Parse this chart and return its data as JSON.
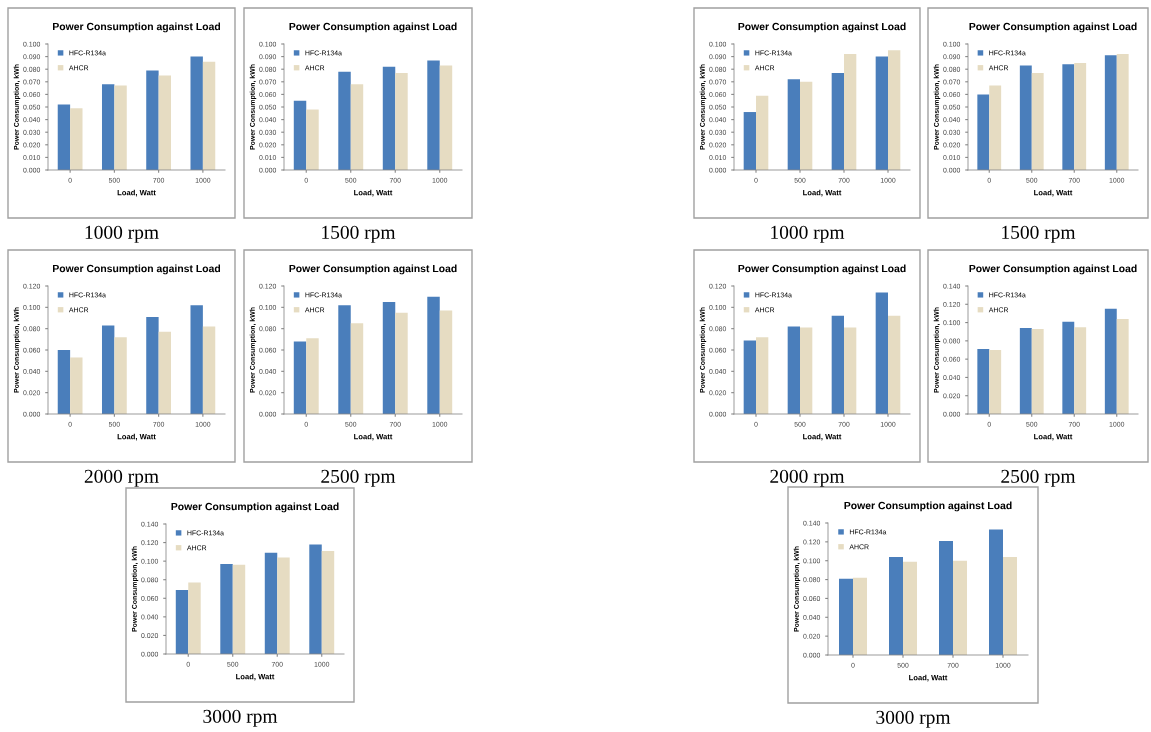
{
  "chart_data": [
    {
      "type": "bar",
      "title": "Power Consumption against Load",
      "xlabel": "Load, Watt",
      "ylabel": "Power Consumption, kWh",
      "categories": [
        "0",
        "500",
        "700",
        "1000"
      ],
      "ylim": [
        0,
        0.1
      ],
      "yticks": [
        {
          "value": 0,
          "label": "0.000"
        },
        {
          "value": 0.01,
          "label": "0.010"
        },
        {
          "value": 0.02,
          "label": "0.020"
        },
        {
          "value": 0.03,
          "label": "0.030"
        },
        {
          "value": 0.04,
          "label": "0.040"
        },
        {
          "value": 0.05,
          "label": "0.050"
        },
        {
          "value": 0.06,
          "label": "0.060"
        },
        {
          "value": 0.07,
          "label": "0.070"
        },
        {
          "value": 0.08,
          "label": "0.080"
        },
        {
          "value": 0.09,
          "label": "0.090"
        },
        {
          "value": 0.1,
          "label": "0.100"
        }
      ],
      "legend": "top left",
      "annotations": [
        "1000 rpm"
      ],
      "series": [
        {
          "name": "HFC-R134a",
          "color": "#4a7ebb",
          "values": [
            0.052,
            0.068,
            0.079,
            0.09
          ]
        },
        {
          "name": "AHCR",
          "color": "#e6dcc2",
          "values": [
            0.049,
            0.067,
            0.075,
            0.086
          ]
        }
      ]
    },
    {
      "type": "bar",
      "title": "Power Consumption against Load",
      "xlabel": "Load, Watt",
      "ylabel": "Power Consumption, kWh",
      "categories": [
        "0",
        "500",
        "700",
        "1000"
      ],
      "ylim": [
        0,
        0.1
      ],
      "yticks": [
        {
          "value": 0,
          "label": "0.000"
        },
        {
          "value": 0.01,
          "label": "0.010"
        },
        {
          "value": 0.02,
          "label": "0.020"
        },
        {
          "value": 0.03,
          "label": "0.030"
        },
        {
          "value": 0.04,
          "label": "0.040"
        },
        {
          "value": 0.05,
          "label": "0.050"
        },
        {
          "value": 0.06,
          "label": "0.060"
        },
        {
          "value": 0.07,
          "label": "0.070"
        },
        {
          "value": 0.08,
          "label": "0.080"
        },
        {
          "value": 0.09,
          "label": "0.090"
        },
        {
          "value": 0.1,
          "label": "0.100"
        }
      ],
      "legend": "top left",
      "annotations": [
        "1500 rpm"
      ],
      "series": [
        {
          "name": "HFC-R134a",
          "color": "#4a7ebb",
          "values": [
            0.055,
            0.078,
            0.082,
            0.087
          ]
        },
        {
          "name": "AHCR",
          "color": "#e6dcc2",
          "values": [
            0.048,
            0.068,
            0.077,
            0.083
          ]
        }
      ]
    },
    {
      "type": "bar",
      "title": "Power Consumption against Load",
      "xlabel": "Load, Watt",
      "ylabel": "Power Consumption, kWh",
      "categories": [
        "0",
        "500",
        "700",
        "1000"
      ],
      "ylim": [
        0,
        0.12
      ],
      "yticks": [
        {
          "value": 0,
          "label": "0.000"
        },
        {
          "value": 0.02,
          "label": "0.020"
        },
        {
          "value": 0.04,
          "label": "0.040"
        },
        {
          "value": 0.06,
          "label": "0.060"
        },
        {
          "value": 0.08,
          "label": "0.080"
        },
        {
          "value": 0.1,
          "label": "0.100"
        },
        {
          "value": 0.12,
          "label": "0.120"
        }
      ],
      "legend": "top left",
      "annotations": [
        "2000 rpm"
      ],
      "series": [
        {
          "name": "HFC-R134a",
          "color": "#4a7ebb",
          "values": [
            0.06,
            0.083,
            0.091,
            0.102
          ]
        },
        {
          "name": "AHCR",
          "color": "#e6dcc2",
          "values": [
            0.053,
            0.072,
            0.077,
            0.082
          ]
        }
      ]
    },
    {
      "type": "bar",
      "title": "Power Consumption against Load",
      "xlabel": "Load, Watt",
      "ylabel": "Power Consumption, kWh",
      "categories": [
        "0",
        "500",
        "700",
        "1000"
      ],
      "ylim": [
        0,
        0.12
      ],
      "yticks": [
        {
          "value": 0,
          "label": "0.000"
        },
        {
          "value": 0.02,
          "label": "0.020"
        },
        {
          "value": 0.04,
          "label": "0.040"
        },
        {
          "value": 0.06,
          "label": "0.060"
        },
        {
          "value": 0.08,
          "label": "0.080"
        },
        {
          "value": 0.1,
          "label": "0.100"
        },
        {
          "value": 0.12,
          "label": "0.120"
        }
      ],
      "legend": "top left",
      "annotations": [
        "2500 rpm"
      ],
      "series": [
        {
          "name": "HFC-R134a",
          "color": "#4a7ebb",
          "values": [
            0.068,
            0.102,
            0.105,
            0.11
          ]
        },
        {
          "name": "AHCR",
          "color": "#e6dcc2",
          "values": [
            0.071,
            0.085,
            0.095,
            0.097
          ]
        }
      ]
    },
    {
      "type": "bar",
      "title": "Power Consumption against Load",
      "xlabel": "Load, Watt",
      "ylabel": "Power Consumption, kWh",
      "categories": [
        "0",
        "500",
        "700",
        "1000"
      ],
      "ylim": [
        0,
        0.14
      ],
      "yticks": [
        {
          "value": 0,
          "label": "0.000"
        },
        {
          "value": 0.02,
          "label": "0.020"
        },
        {
          "value": 0.04,
          "label": "0.040"
        },
        {
          "value": 0.06,
          "label": "0.060"
        },
        {
          "value": 0.08,
          "label": "0.080"
        },
        {
          "value": 0.1,
          "label": "0.100"
        },
        {
          "value": 0.12,
          "label": "0.120"
        },
        {
          "value": 0.14,
          "label": "0.140"
        }
      ],
      "legend": "top left",
      "annotations": [
        "3000 rpm"
      ],
      "series": [
        {
          "name": "HFC-R134a",
          "color": "#4a7ebb",
          "values": [
            0.069,
            0.097,
            0.109,
            0.118
          ]
        },
        {
          "name": "AHCR",
          "color": "#e6dcc2",
          "values": [
            0.077,
            0.096,
            0.104,
            0.111
          ]
        }
      ]
    },
    {
      "type": "bar",
      "title": "Power Consumption against Load",
      "xlabel": "Load, Watt",
      "ylabel": "Power Consumption, kWh",
      "categories": [
        "0",
        "500",
        "700",
        "1000"
      ],
      "ylim": [
        0,
        0.1
      ],
      "yticks": [
        {
          "value": 0,
          "label": "0.000"
        },
        {
          "value": 0.01,
          "label": "0.010"
        },
        {
          "value": 0.02,
          "label": "0.020"
        },
        {
          "value": 0.03,
          "label": "0.030"
        },
        {
          "value": 0.04,
          "label": "0.040"
        },
        {
          "value": 0.05,
          "label": "0.050"
        },
        {
          "value": 0.06,
          "label": "0.060"
        },
        {
          "value": 0.07,
          "label": "0.070"
        },
        {
          "value": 0.08,
          "label": "0.080"
        },
        {
          "value": 0.09,
          "label": "0.090"
        },
        {
          "value": 0.1,
          "label": "0.100"
        }
      ],
      "legend": "top left",
      "annotations": [
        "1000 rpm"
      ],
      "series": [
        {
          "name": "HFC-R134a",
          "color": "#4a7ebb",
          "values": [
            0.046,
            0.072,
            0.077,
            0.09
          ]
        },
        {
          "name": "AHCR",
          "color": "#e6dcc2",
          "values": [
            0.059,
            0.07,
            0.092,
            0.095
          ]
        }
      ]
    },
    {
      "type": "bar",
      "title": "Power Consumption against Load",
      "xlabel": "Load, Watt",
      "ylabel": "Power Consumption, kWh",
      "categories": [
        "0",
        "500",
        "700",
        "1000"
      ],
      "ylim": [
        0,
        0.1
      ],
      "yticks": [
        {
          "value": 0,
          "label": "0.000"
        },
        {
          "value": 0.01,
          "label": "0.010"
        },
        {
          "value": 0.02,
          "label": "0.020"
        },
        {
          "value": 0.03,
          "label": "0.030"
        },
        {
          "value": 0.04,
          "label": "0.040"
        },
        {
          "value": 0.05,
          "label": "0.050"
        },
        {
          "value": 0.06,
          "label": "0.060"
        },
        {
          "value": 0.07,
          "label": "0.070"
        },
        {
          "value": 0.08,
          "label": "0.080"
        },
        {
          "value": 0.09,
          "label": "0.090"
        },
        {
          "value": 0.1,
          "label": "0.100"
        }
      ],
      "legend": "top left",
      "annotations": [
        "1500 rpm"
      ],
      "series": [
        {
          "name": "HFC-R134a",
          "color": "#4a7ebb",
          "values": [
            0.06,
            0.083,
            0.084,
            0.091
          ]
        },
        {
          "name": "AHCR",
          "color": "#e6dcc2",
          "values": [
            0.067,
            0.077,
            0.085,
            0.092
          ]
        }
      ]
    },
    {
      "type": "bar",
      "title": "Power Consumption against Load",
      "xlabel": "Load, Watt",
      "ylabel": "Power Consumption, kWh",
      "categories": [
        "0",
        "500",
        "700",
        "1000"
      ],
      "ylim": [
        0,
        0.12
      ],
      "yticks": [
        {
          "value": 0,
          "label": "0.000"
        },
        {
          "value": 0.02,
          "label": "0.020"
        },
        {
          "value": 0.04,
          "label": "0.040"
        },
        {
          "value": 0.06,
          "label": "0.060"
        },
        {
          "value": 0.08,
          "label": "0.080"
        },
        {
          "value": 0.1,
          "label": "0.100"
        },
        {
          "value": 0.12,
          "label": "0.120"
        }
      ],
      "legend": "top left",
      "annotations": [
        "2000 rpm"
      ],
      "series": [
        {
          "name": "HFC-R134a",
          "color": "#4a7ebb",
          "values": [
            0.069,
            0.082,
            0.092,
            0.114
          ]
        },
        {
          "name": "AHCR",
          "color": "#e6dcc2",
          "values": [
            0.072,
            0.081,
            0.081,
            0.092
          ]
        }
      ]
    },
    {
      "type": "bar",
      "title": "Power Consumption against Load",
      "xlabel": "Load, Watt",
      "ylabel": "Power Consumption, kWh",
      "categories": [
        "0",
        "500",
        "700",
        "1000"
      ],
      "ylim": [
        0,
        0.14
      ],
      "yticks": [
        {
          "value": 0,
          "label": "0.000"
        },
        {
          "value": 0.02,
          "label": "0.020"
        },
        {
          "value": 0.04,
          "label": "0.040"
        },
        {
          "value": 0.06,
          "label": "0.060"
        },
        {
          "value": 0.08,
          "label": "0.080"
        },
        {
          "value": 0.1,
          "label": "0.100"
        },
        {
          "value": 0.12,
          "label": "0.120"
        },
        {
          "value": 0.14,
          "label": "0.140"
        }
      ],
      "legend": "top left",
      "annotations": [
        "2500 rpm"
      ],
      "series": [
        {
          "name": "HFC-R134a",
          "color": "#4a7ebb",
          "values": [
            0.071,
            0.094,
            0.101,
            0.115
          ]
        },
        {
          "name": "AHCR",
          "color": "#e6dcc2",
          "values": [
            0.07,
            0.093,
            0.095,
            0.104
          ]
        }
      ]
    },
    {
      "type": "bar",
      "title": "Power Consumption against Load",
      "xlabel": "Load, Watt",
      "ylabel": "Power Consumption, kWh",
      "categories": [
        "0",
        "500",
        "700",
        "1000"
      ],
      "ylim": [
        0,
        0.14
      ],
      "yticks": [
        {
          "value": 0,
          "label": "0.000"
        },
        {
          "value": 0.02,
          "label": "0.020"
        },
        {
          "value": 0.04,
          "label": "0.040"
        },
        {
          "value": 0.06,
          "label": "0.060"
        },
        {
          "value": 0.08,
          "label": "0.080"
        },
        {
          "value": 0.1,
          "label": "0.100"
        },
        {
          "value": 0.12,
          "label": "0.120"
        },
        {
          "value": 0.14,
          "label": "0.140"
        }
      ],
      "legend": "top left",
      "annotations": [
        "3000 rpm"
      ],
      "series": [
        {
          "name": "HFC-R134a",
          "color": "#4a7ebb",
          "values": [
            0.081,
            0.104,
            0.121,
            0.133
          ]
        },
        {
          "name": "AHCR",
          "color": "#e6dcc2",
          "values": [
            0.082,
            0.099,
            0.1,
            0.104
          ]
        }
      ]
    }
  ]
}
